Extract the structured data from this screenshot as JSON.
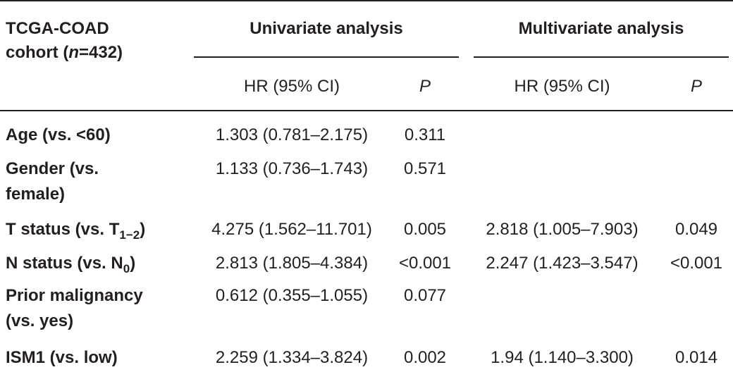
{
  "table": {
    "header": {
      "cohort_line1": "TCGA-COAD",
      "cohort_line2_pre": "cohort (",
      "cohort_line2_n": "n",
      "cohort_line2_post": "=432)",
      "group_univariate": "Univariate analysis",
      "group_multivariate": "Multivariate analysis",
      "col_hr": "HR (95% CI)",
      "col_p": "P"
    },
    "rows": [
      {
        "label_line1": "Age (vs. <60)",
        "uni_hr": "1.303 (0.781–2.175)",
        "uni_p": "0.311",
        "multi_hr": "",
        "multi_p": ""
      },
      {
        "label_line1": "Gender (vs.",
        "label_line2": "female)",
        "uni_hr": "1.133 (0.736–1.743)",
        "uni_p": "0.571",
        "multi_hr": "",
        "multi_p": ""
      },
      {
        "label_pre": "T status (vs. T",
        "label_sub": "1−2",
        "label_post": ")",
        "uni_hr": "4.275 (1.562–11.701)",
        "uni_p": "0.005",
        "multi_hr": "2.818 (1.005–7.903)",
        "multi_p": "0.049"
      },
      {
        "label_pre": "N status (vs. N",
        "label_sub": "0",
        "label_post": ")",
        "uni_hr": "2.813 (1.805–4.384)",
        "uni_p": "<0.001",
        "multi_hr": "2.247 (1.423–3.547)",
        "multi_p": "<0.001"
      },
      {
        "label_line1": "Prior malignancy",
        "label_line2": "(vs. yes)",
        "uni_hr": "0.612 (0.355–1.055)",
        "uni_p": "0.077",
        "multi_hr": "",
        "multi_p": ""
      },
      {
        "label_line1": "ISM1 (vs. low)",
        "uni_hr": "2.259 (1.334–3.824)",
        "uni_p": "0.002",
        "multi_hr": "1.94 (1.140–3.300)",
        "multi_p": "0.014"
      }
    ]
  }
}
